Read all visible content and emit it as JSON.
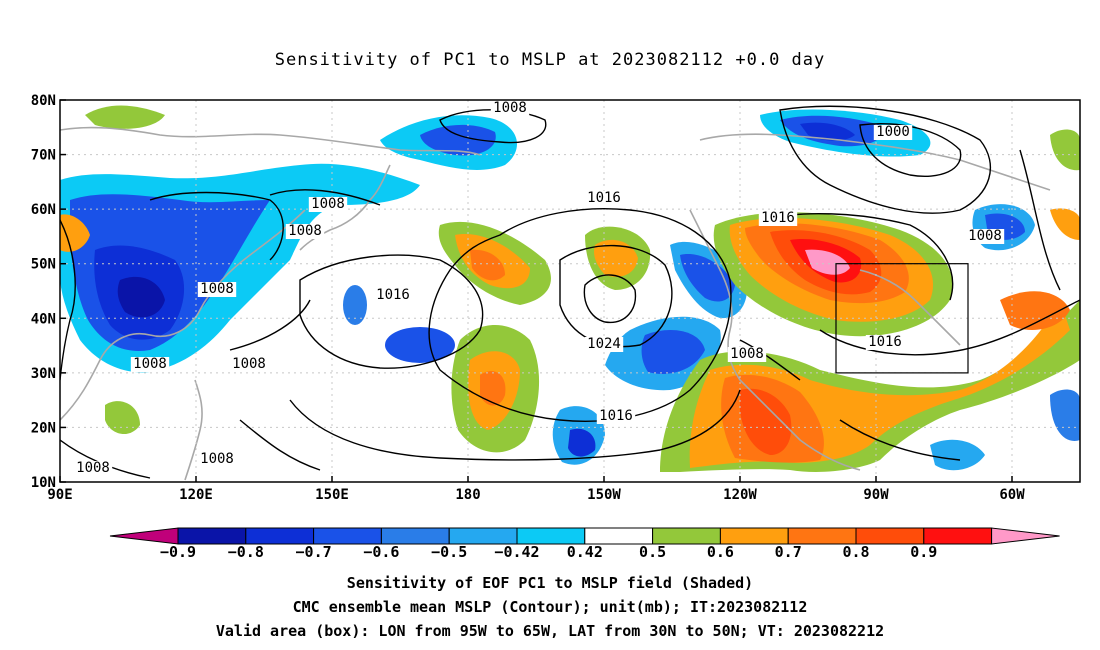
{
  "title": "Sensitivity of PC1 to MSLP at 2023082112 +0.0 day",
  "map": {
    "lat_labels": [
      "80N",
      "70N",
      "60N",
      "50N",
      "40N",
      "30N",
      "20N",
      "10N"
    ],
    "lon_labels": [
      "90E",
      "120E",
      "150E",
      "180",
      "150W",
      "120W",
      "90W",
      "60W"
    ],
    "contour_labels": [
      "1008",
      "1000",
      "1016",
      "1008",
      "1008",
      "1016",
      "1008",
      "1016",
      "1024",
      "1008",
      "1008",
      "1016",
      "1008",
      "1008",
      "1008",
      "1016",
      "1008"
    ],
    "box": {
      "lon_from": "95W",
      "lon_to": "65W",
      "lat_from": "30N",
      "lat_to": "50N"
    }
  },
  "colorbar": {
    "labels": [
      "−0.9",
      "−0.8",
      "−0.7",
      "−0.6",
      "−0.5",
      "−0.42",
      "0.42",
      "0.5",
      "0.6",
      "0.7",
      "0.8",
      "0.9"
    ],
    "colors": [
      "#c0007a",
      "#0a14a8",
      "#0d2fd6",
      "#1a52e8",
      "#2a7de8",
      "#25a8f0",
      "#0ccaf5",
      "#ffffff",
      "#93c83a",
      "#ff9f0f",
      "#ff7512",
      "#ff4d0a",
      "#ff1010",
      "#ff99c8"
    ]
  },
  "captions": [
    "Sensitivity of EOF PC1 to MSLP field (Shaded)",
    "CMC ensemble mean MSLP (Contour); unit(mb); IT:2023082112",
    "Valid area (box): LON from 95W to 65W, LAT from 30N to 50N; VT: 2023082212"
  ]
}
